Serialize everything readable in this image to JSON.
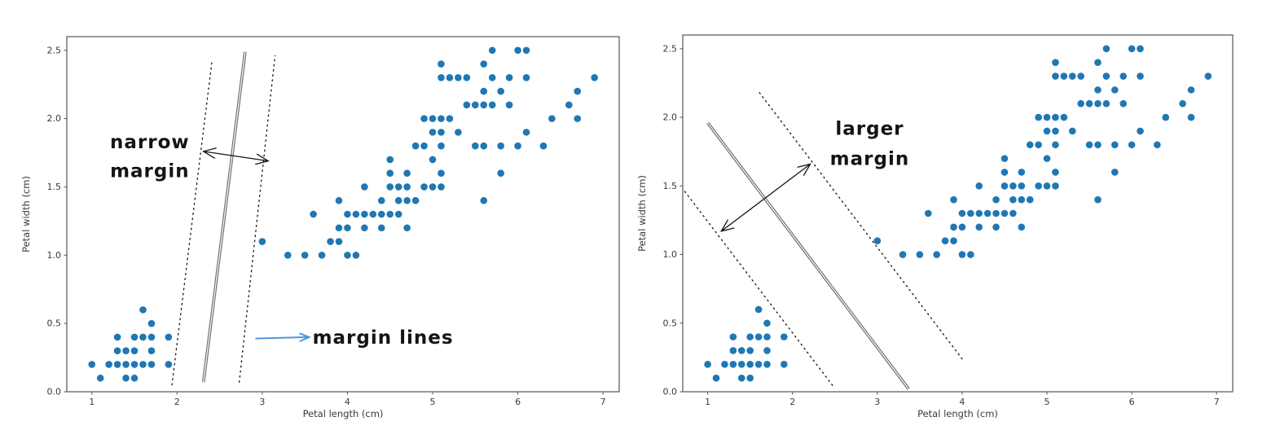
{
  "palette": {
    "dot": "#1f77b4",
    "boundary": "#6f6f6f",
    "dotted": "#111111",
    "ink": "#141414",
    "blue_arrow": "#4f96d8",
    "axis": "#555555"
  },
  "chart_data": {
    "type": "scatter",
    "shared": {
      "xlabel": "Petal length (cm)",
      "ylabel": "Petal width (cm)",
      "xlim": [
        0.706,
        7.19
      ],
      "ylim": [
        0,
        2.6
      ],
      "xticks": [
        "1",
        "2",
        "3",
        "4",
        "5",
        "6",
        "7"
      ],
      "yticks": [
        "0.0",
        "0.5",
        "1.0",
        "1.5",
        "2.0",
        "2.5"
      ],
      "series_name": "iris-petal-points",
      "points": [
        [
          1.0,
          0.2
        ],
        [
          1.1,
          0.1
        ],
        [
          1.2,
          0.2
        ],
        [
          1.3,
          0.2
        ],
        [
          1.3,
          0.3
        ],
        [
          1.3,
          0.4
        ],
        [
          1.4,
          0.1
        ],
        [
          1.4,
          0.2
        ],
        [
          1.4,
          0.3
        ],
        [
          1.5,
          0.1
        ],
        [
          1.5,
          0.2
        ],
        [
          1.5,
          0.3
        ],
        [
          1.5,
          0.4
        ],
        [
          1.6,
          0.2
        ],
        [
          1.6,
          0.4
        ],
        [
          1.6,
          0.6
        ],
        [
          1.7,
          0.2
        ],
        [
          1.7,
          0.3
        ],
        [
          1.7,
          0.4
        ],
        [
          1.7,
          0.5
        ],
        [
          1.9,
          0.2
        ],
        [
          1.9,
          0.4
        ],
        [
          3.0,
          1.1
        ],
        [
          3.3,
          1.0
        ],
        [
          3.5,
          1.0
        ],
        [
          3.6,
          1.3
        ],
        [
          3.7,
          1.0
        ],
        [
          3.8,
          1.1
        ],
        [
          3.9,
          1.1
        ],
        [
          3.9,
          1.2
        ],
        [
          3.9,
          1.4
        ],
        [
          4.0,
          1.0
        ],
        [
          4.0,
          1.2
        ],
        [
          4.0,
          1.3
        ],
        [
          4.1,
          1.0
        ],
        [
          4.1,
          1.3
        ],
        [
          4.2,
          1.2
        ],
        [
          4.2,
          1.3
        ],
        [
          4.2,
          1.5
        ],
        [
          4.3,
          1.3
        ],
        [
          4.4,
          1.2
        ],
        [
          4.4,
          1.3
        ],
        [
          4.4,
          1.4
        ],
        [
          4.5,
          1.3
        ],
        [
          4.5,
          1.5
        ],
        [
          4.5,
          1.6
        ],
        [
          4.6,
          1.3
        ],
        [
          4.6,
          1.4
        ],
        [
          4.6,
          1.5
        ],
        [
          4.7,
          1.2
        ],
        [
          4.7,
          1.4
        ],
        [
          4.7,
          1.5
        ],
        [
          4.7,
          1.6
        ],
        [
          4.8,
          1.4
        ],
        [
          4.8,
          1.8
        ],
        [
          4.9,
          1.5
        ],
        [
          5.0,
          1.7
        ],
        [
          5.1,
          1.6
        ],
        [
          4.5,
          1.7
        ],
        [
          4.9,
          1.8
        ],
        [
          4.9,
          2.0
        ],
        [
          5.0,
          1.5
        ],
        [
          5.0,
          1.9
        ],
        [
          5.0,
          2.0
        ],
        [
          5.1,
          1.5
        ],
        [
          5.1,
          1.8
        ],
        [
          5.1,
          1.9
        ],
        [
          5.1,
          2.0
        ],
        [
          5.1,
          2.3
        ],
        [
          5.1,
          2.4
        ],
        [
          5.2,
          2.0
        ],
        [
          5.2,
          2.3
        ],
        [
          5.3,
          1.9
        ],
        [
          5.3,
          2.3
        ],
        [
          5.4,
          2.1
        ],
        [
          5.4,
          2.3
        ],
        [
          5.5,
          1.8
        ],
        [
          5.5,
          2.1
        ],
        [
          5.6,
          1.4
        ],
        [
          5.6,
          1.8
        ],
        [
          5.6,
          2.1
        ],
        [
          5.6,
          2.2
        ],
        [
          5.6,
          2.4
        ],
        [
          5.7,
          2.1
        ],
        [
          5.7,
          2.3
        ],
        [
          5.7,
          2.5
        ],
        [
          5.8,
          1.6
        ],
        [
          5.8,
          1.8
        ],
        [
          5.8,
          2.2
        ],
        [
          5.9,
          2.1
        ],
        [
          5.9,
          2.3
        ],
        [
          6.0,
          1.8
        ],
        [
          6.0,
          2.5
        ],
        [
          6.1,
          1.9
        ],
        [
          6.1,
          2.3
        ],
        [
          6.1,
          2.5
        ],
        [
          6.3,
          1.8
        ],
        [
          6.4,
          2.0
        ],
        [
          6.6,
          2.1
        ],
        [
          6.7,
          2.0
        ],
        [
          6.7,
          2.2
        ],
        [
          6.9,
          2.3
        ]
      ]
    },
    "charts": [
      {
        "name": "narrow-margin-chart",
        "boundary": {
          "from": [
            2.31,
            0.07
          ],
          "to": [
            2.8,
            2.49
          ]
        },
        "margin_lines": [
          {
            "from": [
              1.94,
              0.05
            ],
            "to": [
              2.41,
              2.42
            ]
          },
          {
            "from": [
              2.73,
              0.07
            ],
            "to": [
              3.15,
              2.46
            ]
          }
        ],
        "width_arrow": {
          "from": [
            2.31,
            1.76
          ],
          "to": [
            3.07,
            1.69
          ]
        },
        "annotations": [
          {
            "name": "narrow-margin-label",
            "lines": [
              "narrow",
              "margin"
            ],
            "x": 1.68,
            "y": 1.83,
            "line_dy": 0.21,
            "align": "middle"
          },
          {
            "name": "margin-lines-label",
            "lines": [
              "margin lines"
            ],
            "x": 3.59,
            "y": 0.4,
            "line_dy": 0,
            "align": "start",
            "arrow": {
              "from": [
                2.92,
                0.39
              ],
              "to": [
                3.55,
                0.4
              ],
              "color_key": "blue_arrow",
              "heads": "end"
            }
          }
        ]
      },
      {
        "name": "larger-margin-chart",
        "boundary": {
          "from": [
            1.0,
            1.96
          ],
          "to": [
            3.37,
            0.02
          ]
        },
        "margin_lines": [
          {
            "from": [
              0.73,
              1.46
            ],
            "to": [
              2.48,
              0.04
            ]
          },
          {
            "from": [
              1.61,
              2.18
            ],
            "to": [
              4.0,
              0.24
            ]
          }
        ],
        "width_arrow": {
          "from": [
            1.16,
            1.17
          ],
          "to": [
            2.21,
            1.66
          ]
        },
        "annotations": [
          {
            "name": "larger-margin-label",
            "lines": [
              "larger",
              "margin"
            ],
            "x": 2.91,
            "y": 1.92,
            "line_dy": 0.22,
            "align": "middle"
          }
        ]
      }
    ]
  }
}
